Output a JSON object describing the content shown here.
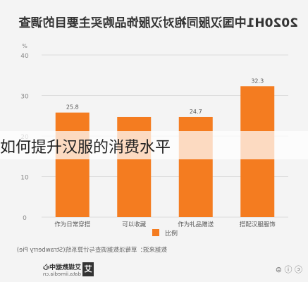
{
  "chart_data": {
    "type": "bar",
    "title": "2020H1中国汉服同袍对汉服饰品购买主要目的调查",
    "categories": [
      "搭配汉服服饰",
      "作为礼品赠送",
      "可以收藏",
      "作为日常穿搭"
    ],
    "values": [
      32.3,
      24.7,
      24.7,
      25.8
    ],
    "data_labels": [
      "32.3",
      "24.7",
      "",
      "25.8"
    ],
    "y_unit": "%",
    "ylim": [
      0,
      40
    ],
    "yticks": [
      0,
      10,
      20,
      30,
      40
    ],
    "grid": true,
    "legend": {
      "position": "bottom-center",
      "label": "比例"
    },
    "bar_color": "#f47c20",
    "source": "数据来源：草莓派数据调查与计算系统(Strawberry Pie)"
  },
  "overlay_caption": "如何提升汉服的消费水平",
  "watermark": {
    "logo_char": "艾",
    "brand": "艾媒数据中心",
    "url": "data.iimedia.cn",
    "license": "ⓒ ⓘ ⊜"
  },
  "colors": {
    "bar": "#f47c20",
    "grid": "#dddddd",
    "axis_text": "#888888"
  }
}
